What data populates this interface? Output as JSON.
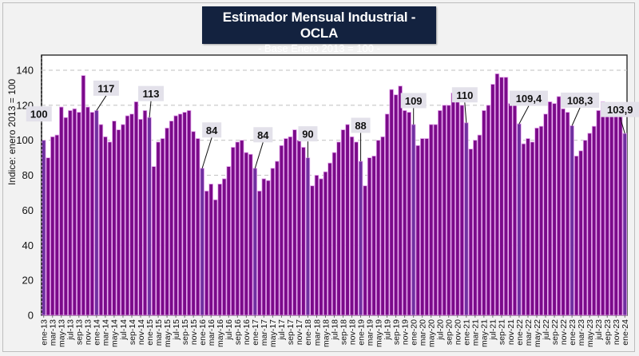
{
  "chart_data": {
    "type": "bar",
    "title": "Estimador Mensual Industrial - OCLA",
    "subtitle": "- Base Enero 2013 = 100 -",
    "xlabel": "",
    "ylabel": "Indice: enero 2013 = 100",
    "ylim": [
      0,
      140
    ],
    "yticks": [
      0,
      20,
      40,
      60,
      80,
      100,
      120,
      140
    ],
    "grid": true,
    "legend": "none",
    "colors": {
      "bar": "#7b0a8a",
      "highlight_bar": "#7030a0",
      "bar_edge": "#e6a9ee",
      "label_bg": "#e3e1ea",
      "title_bg": "#13223f"
    },
    "categories": [
      "ene-13",
      "feb-13",
      "mar-13",
      "abr-13",
      "may-13",
      "jun-13",
      "jul-13",
      "ago-13",
      "sep-13",
      "oct-13",
      "nov-13",
      "dic-13",
      "ene-14",
      "feb-14",
      "mar-14",
      "abr-14",
      "may-14",
      "jun-14",
      "jul-14",
      "ago-14",
      "sep-14",
      "oct-14",
      "nov-14",
      "dic-14",
      "ene-15",
      "feb-15",
      "mar-15",
      "abr-15",
      "may-15",
      "jun-15",
      "jul-15",
      "ago-15",
      "sep-15",
      "oct-15",
      "nov-15",
      "dic-15",
      "ene-16",
      "feb-16",
      "mar-16",
      "abr-16",
      "may-16",
      "jun-16",
      "jul-16",
      "ago-16",
      "sep-16",
      "oct-16",
      "nov-16",
      "dic-16",
      "ene-17",
      "feb-17",
      "mar-17",
      "abr-17",
      "may-17",
      "jun-17",
      "jul-17",
      "ago-17",
      "sep-17",
      "oct-17",
      "nov-17",
      "dic-17",
      "ene-18",
      "feb-18",
      "mar-18",
      "abr-18",
      "may-18",
      "jun-18",
      "jul-18",
      "ago-18",
      "sep-18",
      "oct-18",
      "nov-18",
      "dic-18",
      "ene-19",
      "feb-19",
      "mar-19",
      "abr-19",
      "may-19",
      "jun-19",
      "jul-19",
      "ago-19",
      "sep-19",
      "oct-19",
      "nov-19",
      "dic-19",
      "ene-20",
      "feb-20",
      "mar-20",
      "abr-20",
      "may-20",
      "jun-20",
      "jul-20",
      "ago-20",
      "sep-20",
      "oct-20",
      "nov-20",
      "dic-20",
      "ene-21",
      "feb-21",
      "mar-21",
      "abr-21",
      "may-21",
      "jun-21",
      "jul-21",
      "ago-21",
      "sep-21",
      "oct-21",
      "nov-21",
      "dic-21",
      "ene-22",
      "feb-22",
      "mar-22",
      "abr-22",
      "may-22",
      "jun-22",
      "jul-22",
      "ago-22",
      "sep-22",
      "oct-22",
      "nov-22",
      "dic-22",
      "ene-23",
      "feb-23",
      "mar-23",
      "abr-23",
      "may-23",
      "jun-23",
      "jul-23",
      "ago-23",
      "sep-23",
      "oct-23",
      "nov-23",
      "dic-23",
      "ene-24"
    ],
    "tick_labels": [
      "ene-13",
      "mar-13",
      "may-13",
      "jul-13",
      "sep-13",
      "nov-13",
      "ene-14",
      "mar-14",
      "may-14",
      "jul-14",
      "sep-14",
      "nov-14",
      "ene-15",
      "mar-15",
      "may-15",
      "jul-15",
      "sep-15",
      "nov-15",
      "ene-16",
      "mar-16",
      "may-16",
      "jul-16",
      "sep-16",
      "nov-16",
      "ene-17",
      "mar-17",
      "may-17",
      "jul-17",
      "sep-17",
      "nov-17",
      "ene-18",
      "mar-18",
      "may-18",
      "jul-18",
      "sep-18",
      "nov-18",
      "ene-19",
      "mar-19",
      "may-19",
      "jul-19",
      "sep-19",
      "nov-19",
      "ene-20",
      "mar-20",
      "may-20",
      "jul-20",
      "sep-20",
      "nov-20",
      "ene-21",
      "mar-21",
      "may-21",
      "jul-21",
      "sep-21",
      "nov-21",
      "ene-22",
      "mar-22",
      "may-22",
      "jul-22",
      "sep-22",
      "nov-22",
      "ene-23",
      "mar-23",
      "may-23",
      "jul-23",
      "sep-23",
      "nov-23",
      "ene-24"
    ],
    "values": [
      100,
      90,
      102,
      103,
      119,
      113,
      117,
      118,
      116,
      137,
      119,
      116,
      117,
      109,
      102,
      99,
      111,
      106,
      109,
      114,
      115,
      122,
      112,
      117,
      113,
      85,
      99,
      101,
      107,
      111,
      114,
      115,
      116,
      117,
      105,
      101,
      84,
      71,
      75,
      66,
      75,
      78,
      85,
      96,
      99,
      100,
      93,
      92,
      84,
      71,
      78,
      77,
      84,
      88,
      97,
      101,
      102,
      106,
      100,
      96,
      90,
      74,
      80,
      78,
      82,
      87,
      93,
      99,
      106,
      109,
      102,
      99,
      88,
      74,
      90,
      91,
      100,
      102,
      115,
      129,
      126,
      131,
      117,
      116,
      109,
      97,
      101,
      101,
      109,
      109,
      117,
      120,
      120,
      127,
      122,
      120,
      110,
      95,
      100,
      103,
      117,
      120,
      132,
      138,
      136,
      136,
      121,
      121,
      109.4,
      98,
      101,
      99,
      107,
      108,
      115,
      122,
      121,
      125,
      118,
      116,
      108.3,
      91,
      94,
      100,
      104,
      108,
      117,
      122,
      115,
      117,
      117,
      116,
      103.9
    ],
    "annotations": [
      {
        "category": "ene-13",
        "text": "100"
      },
      {
        "category": "ene-14",
        "text": "117"
      },
      {
        "category": "ene-15",
        "text": "113"
      },
      {
        "category": "ene-16",
        "text": "84"
      },
      {
        "category": "ene-17",
        "text": "84"
      },
      {
        "category": "ene-18",
        "text": "90"
      },
      {
        "category": "ene-19",
        "text": "88"
      },
      {
        "category": "ene-20",
        "text": "109"
      },
      {
        "category": "ene-21",
        "text": "110"
      },
      {
        "category": "ene-22",
        "text": "109,4"
      },
      {
        "category": "ene-23",
        "text": "108,3"
      },
      {
        "category": "ene-24",
        "text": "103,9"
      }
    ]
  }
}
